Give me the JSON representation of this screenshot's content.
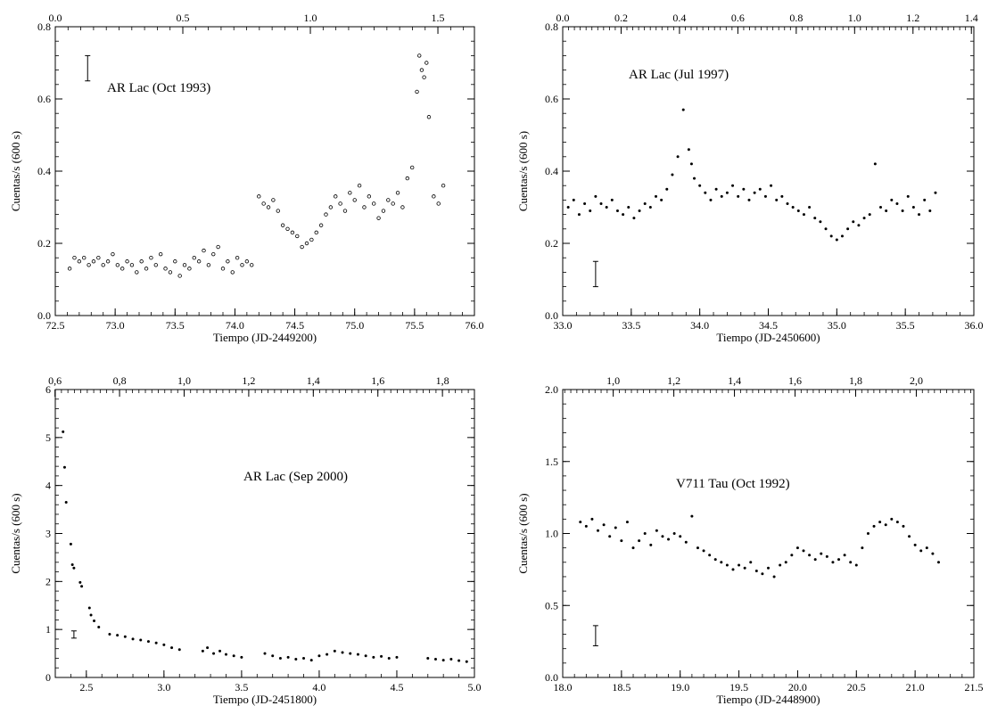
{
  "figure": {
    "background": "#ffffff",
    "ink": "#000000"
  },
  "chart_data": [
    {
      "type": "scatter",
      "title": "AR Lac (Oct 1993)",
      "xlabel": "Tiempo (JD-2449200)",
      "ylabel": "Cuentas/s (600 s)",
      "xlim": [
        72.5,
        76.0
      ],
      "ylim": [
        0.0,
        0.8
      ],
      "xticks": [
        72.5,
        73.0,
        73.5,
        74.0,
        74.5,
        75.0,
        75.5,
        76.0
      ],
      "xtick_labels": [
        "72.5",
        "73.0",
        "73.5",
        "74.0",
        "74.5",
        "75.0",
        "75.5",
        "76.0"
      ],
      "yticks": [
        0.0,
        0.2,
        0.4,
        0.6,
        0.8
      ],
      "ytick_labels": [
        "0.0",
        "0.2",
        "0.4",
        "0.6",
        "0.8"
      ],
      "top_axis": {
        "ticks": [
          0.0,
          0.5,
          1.0,
          1.5
        ],
        "labels": [
          "0.0",
          "0.5",
          "1.0",
          "1.5"
        ],
        "x_at_zero": 72.5,
        "x_per_unit": 2.13
      },
      "marker": "open",
      "error_bar": {
        "x": 72.77,
        "y_low": 0.65,
        "y_high": 0.72
      },
      "grid": false,
      "series": [
        {
          "x": [
            72.62,
            72.66,
            72.7,
            72.74,
            72.78,
            72.82,
            72.86,
            72.9,
            72.94,
            72.98,
            73.02,
            73.06,
            73.1,
            73.14,
            73.18,
            73.22,
            73.26,
            73.3,
            73.34,
            73.38,
            73.42,
            73.46,
            73.5,
            73.54,
            73.58,
            73.62,
            73.66,
            73.7,
            73.74,
            73.78,
            73.82,
            73.86,
            73.9,
            73.94,
            73.98,
            74.02,
            74.06,
            74.1,
            74.14,
            74.2,
            74.24,
            74.28,
            74.32,
            74.36,
            74.4,
            74.44,
            74.48,
            74.52,
            74.56,
            74.6,
            74.64,
            74.68,
            74.72,
            74.76,
            74.8,
            74.84,
            74.88,
            74.92,
            74.96,
            75.0,
            75.04,
            75.08,
            75.12,
            75.16,
            75.2,
            75.24,
            75.28,
            75.32,
            75.36,
            75.4,
            75.44,
            75.48,
            75.52,
            75.54,
            75.56,
            75.58,
            75.6,
            75.62,
            75.66,
            75.7,
            75.74
          ],
          "y": [
            0.13,
            0.16,
            0.15,
            0.16,
            0.14,
            0.15,
            0.16,
            0.14,
            0.15,
            0.17,
            0.14,
            0.13,
            0.15,
            0.14,
            0.12,
            0.15,
            0.13,
            0.16,
            0.14,
            0.17,
            0.13,
            0.12,
            0.15,
            0.11,
            0.14,
            0.13,
            0.16,
            0.15,
            0.18,
            0.14,
            0.17,
            0.19,
            0.13,
            0.15,
            0.12,
            0.16,
            0.14,
            0.15,
            0.14,
            0.33,
            0.31,
            0.3,
            0.32,
            0.29,
            0.25,
            0.24,
            0.23,
            0.22,
            0.19,
            0.2,
            0.21,
            0.23,
            0.25,
            0.28,
            0.3,
            0.33,
            0.31,
            0.29,
            0.34,
            0.32,
            0.36,
            0.3,
            0.33,
            0.31,
            0.27,
            0.29,
            0.32,
            0.31,
            0.34,
            0.3,
            0.38,
            0.41,
            0.62,
            0.72,
            0.68,
            0.66,
            0.7,
            0.55,
            0.33,
            0.31,
            0.36
          ]
        }
      ]
    },
    {
      "type": "scatter",
      "title": "AR Lac (Jul 1997)",
      "xlabel": "Tiempo (JD-2450600)",
      "ylabel": "Cuentas/s (600 s)",
      "xlim": [
        33.0,
        36.0
      ],
      "ylim": [
        0.0,
        0.8
      ],
      "xticks": [
        33.0,
        33.5,
        34.0,
        34.5,
        35.0,
        35.5,
        36.0
      ],
      "xtick_labels": [
        "33.0",
        "33.5",
        "34.0",
        "34.5",
        "35.0",
        "35.5",
        "36.0"
      ],
      "yticks": [
        0.0,
        0.2,
        0.4,
        0.6,
        0.8
      ],
      "ytick_labels": [
        "0.0",
        "0.2",
        "0.4",
        "0.6",
        "0.8"
      ],
      "top_axis": {
        "ticks": [
          0.0,
          0.2,
          0.4,
          0.6,
          0.8,
          1.0,
          1.2,
          1.4
        ],
        "labels": [
          "0.0",
          "0.2",
          "0.4",
          "0.6",
          "0.8",
          "1.0",
          "1.2",
          "1.4"
        ],
        "x_at_zero": 33.0,
        "x_per_unit": 2.13
      },
      "marker": "filled",
      "error_bar": {
        "x": 33.24,
        "y_low": 0.08,
        "y_high": 0.15
      },
      "grid": false,
      "series": [
        {
          "x": [
            33.04,
            33.08,
            33.12,
            33.16,
            33.2,
            33.24,
            33.28,
            33.32,
            33.36,
            33.4,
            33.44,
            33.48,
            33.52,
            33.56,
            33.6,
            33.64,
            33.68,
            33.72,
            33.76,
            33.8,
            33.84,
            33.88,
            33.92,
            33.94,
            33.96,
            34.0,
            34.04,
            34.08,
            34.12,
            34.16,
            34.2,
            34.24,
            34.28,
            34.32,
            34.36,
            34.4,
            34.44,
            34.48,
            34.52,
            34.56,
            34.6,
            34.64,
            34.68,
            34.72,
            34.76,
            34.8,
            34.84,
            34.88,
            34.92,
            34.96,
            35.0,
            35.04,
            35.08,
            35.12,
            35.16,
            35.2,
            35.24,
            35.28,
            35.32,
            35.36,
            35.4,
            35.44,
            35.48,
            35.52,
            35.56,
            35.6,
            35.64,
            35.68,
            35.72
          ],
          "y": [
            0.3,
            0.32,
            0.28,
            0.31,
            0.29,
            0.33,
            0.31,
            0.3,
            0.32,
            0.29,
            0.28,
            0.3,
            0.27,
            0.29,
            0.31,
            0.3,
            0.33,
            0.32,
            0.35,
            0.39,
            0.44,
            0.57,
            0.46,
            0.42,
            0.38,
            0.36,
            0.34,
            0.32,
            0.35,
            0.33,
            0.34,
            0.36,
            0.33,
            0.35,
            0.32,
            0.34,
            0.35,
            0.33,
            0.36,
            0.32,
            0.33,
            0.31,
            0.3,
            0.29,
            0.28,
            0.3,
            0.27,
            0.26,
            0.24,
            0.22,
            0.21,
            0.22,
            0.24,
            0.26,
            0.25,
            0.27,
            0.28,
            0.42,
            0.3,
            0.29,
            0.32,
            0.31,
            0.29,
            0.33,
            0.3,
            0.28,
            0.32,
            0.29,
            0.34
          ]
        }
      ]
    },
    {
      "type": "scatter",
      "title": "AR Lac (Sep 2000)",
      "xlabel": "Tiempo (JD-2451800)",
      "ylabel": "Cuentas/s (600 s)",
      "xlim": [
        2.3,
        5.0
      ],
      "ylim": [
        0,
        6
      ],
      "xticks": [
        2.5,
        3.0,
        3.5,
        4.0,
        4.5,
        5.0
      ],
      "xtick_labels": [
        "2.5",
        "3.0",
        "3.5",
        "4.0",
        "4.5",
        "5.0"
      ],
      "yticks": [
        0,
        1,
        2,
        3,
        4,
        5,
        6
      ],
      "ytick_labels": [
        "0",
        "1",
        "2",
        "3",
        "4",
        "5",
        "6"
      ],
      "top_axis": {
        "ticks": [
          0.6,
          0.8,
          1.0,
          1.2,
          1.4,
          1.6,
          1.8
        ],
        "labels": [
          "0,6",
          "0,8",
          "1,0",
          "1,2",
          "1,4",
          "1,6",
          "1,8"
        ],
        "x_at_zero": 1.05,
        "x_per_unit": 2.08
      },
      "marker": "filled",
      "error_bar": {
        "x": 2.42,
        "y_low": 0.82,
        "y_high": 0.97
      },
      "grid": false,
      "series": [
        {
          "x": [
            2.35,
            2.36,
            2.37,
            2.4,
            2.41,
            2.42,
            2.46,
            2.47,
            2.52,
            2.53,
            2.55,
            2.58,
            2.65,
            2.7,
            2.75,
            2.8,
            2.85,
            2.9,
            2.95,
            3.0,
            3.05,
            3.1,
            3.25,
            3.28,
            3.32,
            3.36,
            3.4,
            3.45,
            3.5,
            3.65,
            3.7,
            3.75,
            3.8,
            3.85,
            3.9,
            3.95,
            4.0,
            4.05,
            4.1,
            4.15,
            4.2,
            4.25,
            4.3,
            4.35,
            4.4,
            4.45,
            4.5,
            4.7,
            4.75,
            4.8,
            4.85,
            4.9,
            4.95
          ],
          "y": [
            5.12,
            4.38,
            3.65,
            2.78,
            2.35,
            2.28,
            1.98,
            1.9,
            1.45,
            1.3,
            1.18,
            1.05,
            0.9,
            0.88,
            0.85,
            0.8,
            0.78,
            0.75,
            0.72,
            0.68,
            0.62,
            0.58,
            0.55,
            0.62,
            0.5,
            0.55,
            0.48,
            0.45,
            0.42,
            0.5,
            0.45,
            0.4,
            0.42,
            0.38,
            0.4,
            0.36,
            0.45,
            0.48,
            0.55,
            0.52,
            0.5,
            0.48,
            0.45,
            0.42,
            0.44,
            0.4,
            0.42,
            0.4,
            0.38,
            0.36,
            0.38,
            0.35,
            0.33
          ]
        }
      ]
    },
    {
      "type": "scatter",
      "title": "V711 Tau (Oct 1992)",
      "xlabel": "Tiempo (JD-2448900)",
      "ylabel": "Cuentas/s (600 s)",
      "xlim": [
        18.0,
        21.5
      ],
      "ylim": [
        0.0,
        2.0
      ],
      "xticks": [
        18.0,
        18.5,
        19.0,
        19.5,
        20.0,
        20.5,
        21.0,
        21.5
      ],
      "xtick_labels": [
        "18.0",
        "18.5",
        "19.0",
        "19.5",
        "20.0",
        "20.5",
        "21.0",
        "21.5"
      ],
      "yticks": [
        0.0,
        0.5,
        1.0,
        1.5,
        2.0
      ],
      "ytick_labels": [
        "0.0",
        "0.5",
        "1.0",
        "1.5",
        "2.0"
      ],
      "top_axis": {
        "ticks": [
          1.0,
          1.2,
          1.4,
          1.6,
          1.8,
          2.0
        ],
        "labels": [
          "1,0",
          "1,2",
          "1,4",
          "1,6",
          "1,8",
          "2,0"
        ],
        "x_at_zero": 15.85,
        "x_per_unit": 2.58
      },
      "marker": "filled",
      "error_bar": {
        "x": 18.28,
        "y_low": 0.22,
        "y_high": 0.36
      },
      "grid": false,
      "series": [
        {
          "x": [
            18.15,
            18.2,
            18.25,
            18.3,
            18.35,
            18.4,
            18.45,
            18.5,
            18.55,
            18.6,
            18.65,
            18.7,
            18.75,
            18.8,
            18.85,
            18.9,
            18.95,
            19.0,
            19.05,
            19.1,
            19.15,
            19.2,
            19.25,
            19.3,
            19.35,
            19.4,
            19.45,
            19.5,
            19.55,
            19.6,
            19.65,
            19.7,
            19.75,
            19.8,
            19.85,
            19.9,
            19.95,
            20.0,
            20.05,
            20.1,
            20.15,
            20.2,
            20.25,
            20.3,
            20.35,
            20.4,
            20.45,
            20.5,
            20.55,
            20.6,
            20.65,
            20.7,
            20.75,
            20.8,
            20.85,
            20.9,
            20.95,
            21.0,
            21.05,
            21.1,
            21.15,
            21.2
          ],
          "y": [
            1.08,
            1.05,
            1.1,
            1.02,
            1.06,
            0.98,
            1.04,
            0.95,
            1.08,
            0.9,
            0.95,
            1.0,
            0.92,
            1.02,
            0.98,
            0.96,
            1.0,
            0.98,
            0.94,
            1.12,
            0.9,
            0.88,
            0.85,
            0.82,
            0.8,
            0.78,
            0.75,
            0.78,
            0.76,
            0.8,
            0.74,
            0.72,
            0.76,
            0.7,
            0.78,
            0.8,
            0.85,
            0.9,
            0.88,
            0.85,
            0.82,
            0.86,
            0.84,
            0.8,
            0.82,
            0.85,
            0.8,
            0.78,
            0.9,
            1.0,
            1.05,
            1.08,
            1.06,
            1.1,
            1.08,
            1.05,
            0.98,
            0.92,
            0.88,
            0.9,
            0.86,
            0.8
          ]
        }
      ]
    }
  ]
}
